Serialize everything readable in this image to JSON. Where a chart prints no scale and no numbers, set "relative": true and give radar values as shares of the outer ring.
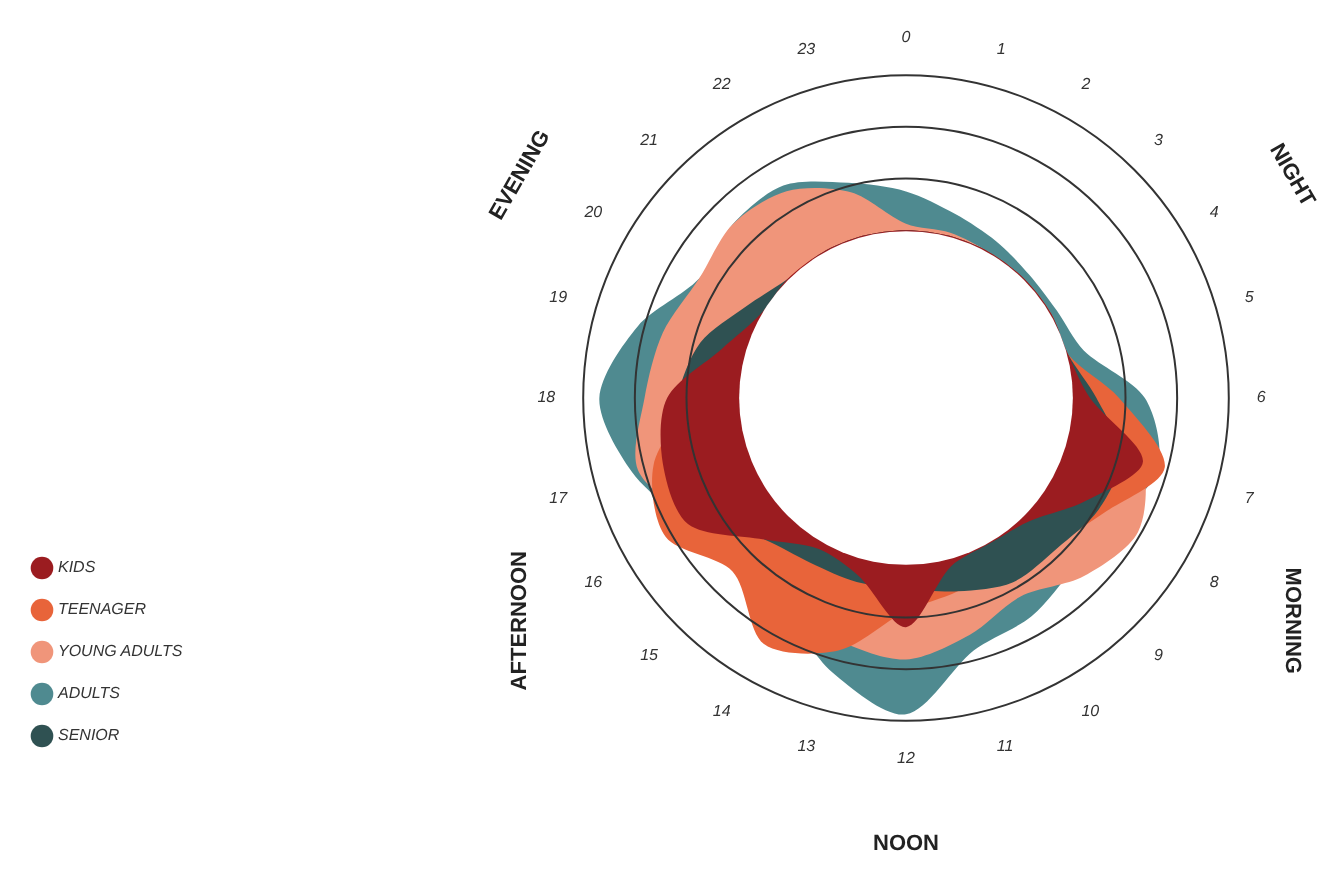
{
  "chart_data": {
    "type": "radar",
    "relative": true,
    "grid": true,
    "legend": "bottom left",
    "categories": [
      "0",
      "1",
      "2",
      "3",
      "4",
      "5",
      "6",
      "7",
      "8",
      "9",
      "10",
      "11",
      "12",
      "13",
      "14",
      "15",
      "16",
      "17",
      "18",
      "19",
      "20",
      "21",
      "22",
      "23"
    ],
    "annotations": [
      "NIGHT",
      "MORNING",
      "NOON",
      "AFTERNOON",
      "EVENING"
    ],
    "series": [
      {
        "name": "KIDS",
        "color": "#9b1c20",
        "values": [
          0.52,
          0.52,
          0.52,
          0.52,
          0.52,
          0.52,
          0.57,
          0.76,
          0.64,
          0.54,
          0.52,
          0.54,
          0.71,
          0.57,
          0.54,
          0.62,
          0.78,
          0.78,
          0.74,
          0.59,
          0.52,
          0.52,
          0.52,
          0.52
        ]
      },
      {
        "name": "TEENAGER",
        "color": "#e8643a",
        "values": [
          0.52,
          0.52,
          0.52,
          0.52,
          0.52,
          0.52,
          0.66,
          0.83,
          0.71,
          0.64,
          0.59,
          0.62,
          0.66,
          0.81,
          0.88,
          0.76,
          0.86,
          0.81,
          0.66,
          0.57,
          0.52,
          0.52,
          0.52,
          0.52
        ]
      },
      {
        "name": "YOUNG ADULTS",
        "color": "#f0957a",
        "values": [
          0.54,
          0.53,
          0.52,
          0.52,
          0.52,
          0.52,
          0.62,
          0.76,
          0.83,
          0.78,
          0.71,
          0.76,
          0.81,
          0.78,
          0.74,
          0.71,
          0.76,
          0.86,
          0.81,
          0.78,
          0.74,
          0.76,
          0.74,
          0.66
        ]
      },
      {
        "name": "ADULTS",
        "color": "#4f8a90",
        "values": [
          0.64,
          0.59,
          0.56,
          0.54,
          0.54,
          0.57,
          0.74,
          0.81,
          0.76,
          0.74,
          0.78,
          0.81,
          0.98,
          0.88,
          0.76,
          0.74,
          0.78,
          0.88,
          0.95,
          0.86,
          0.74,
          0.76,
          0.76,
          0.69
        ]
      },
      {
        "name": "SENIOR",
        "color": "#2f5152",
        "values": [
          0.52,
          0.52,
          0.52,
          0.52,
          0.52,
          0.52,
          0.59,
          0.69,
          0.69,
          0.66,
          0.66,
          0.62,
          0.59,
          0.59,
          0.59,
          0.62,
          0.74,
          0.76,
          0.71,
          0.66,
          0.57,
          0.52,
          0.52,
          0.52
        ]
      }
    ]
  }
}
